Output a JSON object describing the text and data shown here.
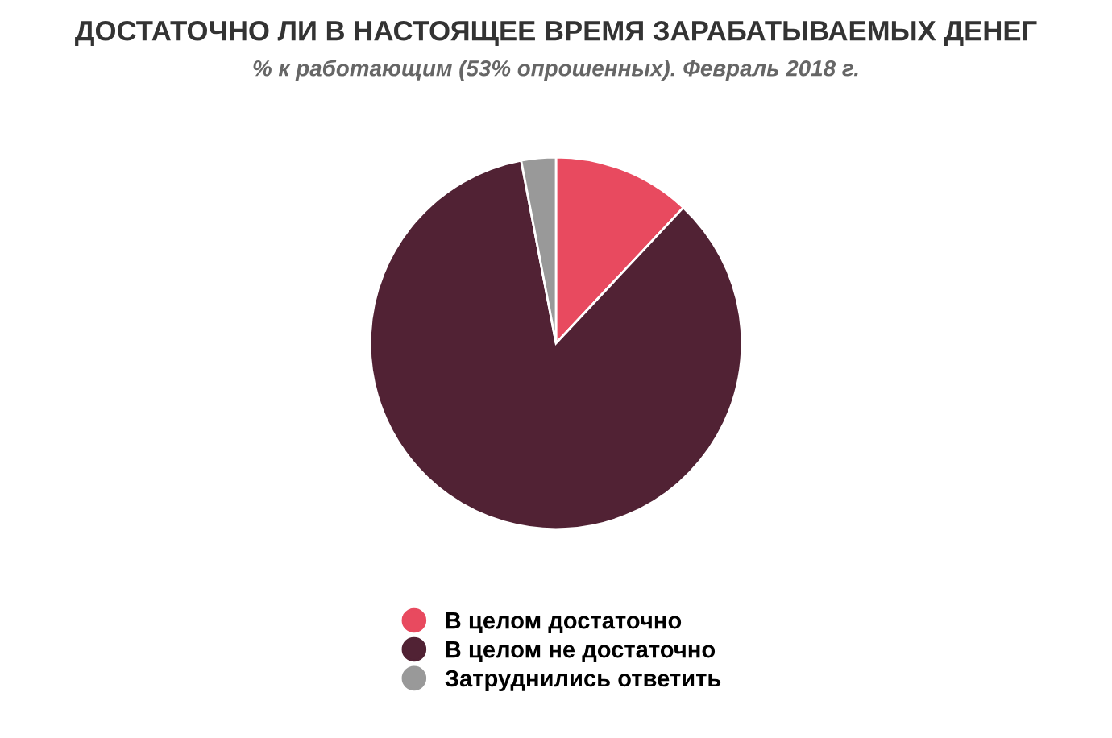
{
  "chart_data": {
    "type": "pie",
    "title": "ДОСТАТОЧНО ЛИ В НАСТОЯЩЕЕ ВРЕМЯ ЗАРАБАТЫВАЕМЫХ ДЕНЕГ",
    "subtitle": "% к работающим (53% опрошенных). Февраль 2018 г.",
    "categories": [
      "В целом достаточно",
      "В целом не достаточно",
      "Затруднились ответить"
    ],
    "values": [
      12,
      85,
      3
    ],
    "colors": [
      "#e84a5f",
      "#512234",
      "#999999"
    ],
    "legend": "bottom"
  }
}
